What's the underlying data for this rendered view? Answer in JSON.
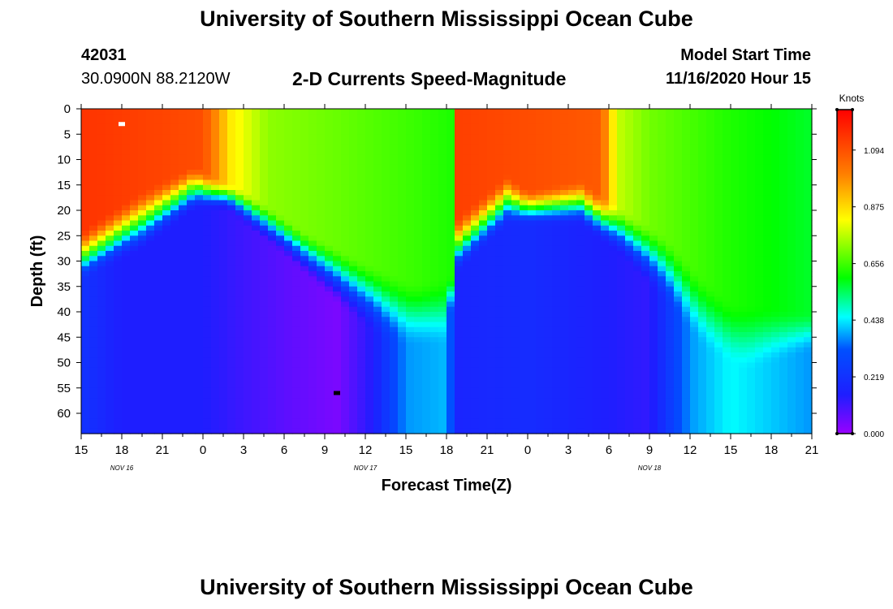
{
  "header": {
    "title": "University of Southern Mississippi Ocean Cube",
    "station_id": "42031",
    "station_coords": "30.0900N 88.2120W",
    "chart_title": "2-D Currents Speed-Magnitude",
    "model_start_label": "Model Start Time",
    "model_start_value": "11/16/2020 Hour 15"
  },
  "footer": {
    "title": "University of Southern Mississippi Ocean Cube"
  },
  "chart_data": {
    "type": "heatmap",
    "title": "2-D Currents Speed-Magnitude",
    "xlabel": "Forecast Time(Z)",
    "ylabel": "Depth (ft)",
    "x_tick_labels": [
      "15",
      "18",
      "21",
      "0",
      "3",
      "6",
      "9",
      "12",
      "15",
      "18",
      "21",
      "0",
      "3",
      "6",
      "9",
      "12",
      "15",
      "18",
      "21"
    ],
    "x_date_labels": [
      {
        "label": "NOV 16",
        "tick_index": 1
      },
      {
        "label": "NOV 17",
        "tick_index": 7
      },
      {
        "label": "NOV 18",
        "tick_index": 14
      }
    ],
    "y_tick_labels": [
      "0",
      "5",
      "10",
      "15",
      "20",
      "25",
      "30",
      "35",
      "40",
      "45",
      "50",
      "55",
      "60"
    ],
    "ylim": [
      0,
      64
    ],
    "colorbar": {
      "unit": "Knots",
      "ticks": [
        "0.000",
        "0.219",
        "0.438",
        "0.656",
        "0.875",
        "1.094"
      ],
      "range": [
        0,
        1.25
      ],
      "colors": [
        "#9900ff",
        "#1010ff",
        "#00ffff",
        "#00ff00",
        "#ffff00",
        "#ff8000",
        "#ff0000"
      ]
    },
    "marks": [
      {
        "name": "max-marker",
        "color": "#ffffff",
        "time_tick": 1,
        "depth_ft": 3
      },
      {
        "name": "min-marker",
        "color": "#000000",
        "time_tick": 6.3,
        "depth_ft": 56
      }
    ]
  }
}
